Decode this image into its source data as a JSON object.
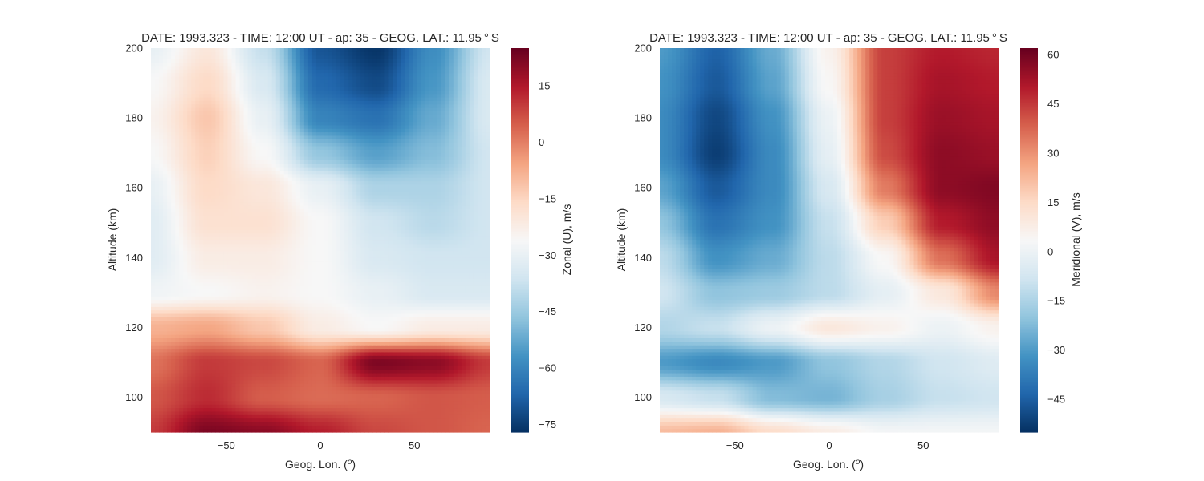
{
  "chart_data": [
    {
      "type": "heatmap",
      "title": "DATE: 1993.323 - TIME: 12:00 UT - ap:  35 - GEOG. LAT.:  11.95$^\\circ$S",
      "title_display": "DATE: 1993.323 - TIME: 12:00 UT - ap:  35 - GEOG. LAT.:  11.95 ° S",
      "xlabel": "Geog. Lon. (°)",
      "xlabel_prefix": "Geog. Lon. (",
      "xlabel_unit": "o",
      "xlabel_suffix": ")",
      "ylabel": "Altitude (km)",
      "colorbar_label": "Zonal (U), m/s",
      "xlim": [
        -90,
        90
      ],
      "ylim": [
        90,
        200
      ],
      "clim": [
        -77,
        25
      ],
      "colormap": "RdBu_r",
      "grid": false,
      "x_ticks": [
        {
          "value": -50,
          "label": "−50"
        },
        {
          "value": 0,
          "label": "0"
        },
        {
          "value": 50,
          "label": "50"
        }
      ],
      "y_ticks": [
        {
          "value": 100,
          "label": "100"
        },
        {
          "value": 120,
          "label": "120"
        },
        {
          "value": 140,
          "label": "140"
        },
        {
          "value": 160,
          "label": "160"
        },
        {
          "value": 180,
          "label": "180"
        },
        {
          "value": 200,
          "label": "200"
        }
      ],
      "colorbar_ticks": [
        {
          "value": -75,
          "label": "−75"
        },
        {
          "value": -60,
          "label": "−60"
        },
        {
          "value": -45,
          "label": "−45"
        },
        {
          "value": -30,
          "label": "−30"
        },
        {
          "value": -15,
          "label": "−15"
        },
        {
          "value": 0,
          "label": "0"
        },
        {
          "value": 15,
          "label": "15"
        }
      ],
      "grid_x": [
        -90,
        -60,
        -30,
        0,
        30,
        60,
        90
      ],
      "grid_y": [
        90,
        100,
        110,
        120,
        130,
        140,
        150,
        160,
        170,
        180,
        190,
        200
      ],
      "z": [
        [
          10,
          22,
          20,
          14,
          8,
          6,
          4
        ],
        [
          6,
          12,
          5,
          3,
          4,
          6,
          5
        ],
        [
          2,
          10,
          8,
          4,
          22,
          20,
          10
        ],
        [
          -8,
          -6,
          -12,
          -22,
          -26,
          -22,
          -22
        ],
        [
          -28,
          -26,
          -24,
          -26,
          -30,
          -34,
          -34
        ],
        [
          -32,
          -22,
          -22,
          -26,
          -34,
          -36,
          -36
        ],
        [
          -32,
          -18,
          -18,
          -26,
          -36,
          -40,
          -36
        ],
        [
          -30,
          -16,
          -20,
          -30,
          -42,
          -42,
          -36
        ],
        [
          -26,
          -14,
          -26,
          -46,
          -54,
          -48,
          -36
        ],
        [
          -24,
          -12,
          -30,
          -60,
          -64,
          -52,
          -34
        ],
        [
          -26,
          -16,
          -34,
          -66,
          -72,
          -56,
          -34
        ],
        [
          -30,
          -20,
          -38,
          -70,
          -76,
          -58,
          -36
        ]
      ]
    },
    {
      "type": "heatmap",
      "title": "DATE: 1993.323 - TIME: 12:00 UT - ap:  35 - GEOG. LAT.:  11.95$^\\circ$S",
      "title_display": "DATE: 1993.323 - TIME: 12:00 UT - ap:  35 - GEOG. LAT.:  11.95 ° S",
      "xlabel": "Geog. Lon. (°)",
      "xlabel_prefix": "Geog. Lon. (",
      "xlabel_unit": "o",
      "xlabel_suffix": ")",
      "ylabel": "Altitude (km)",
      "colorbar_label": "Meridional (V), m/s",
      "xlim": [
        -90,
        90
      ],
      "ylim": [
        90,
        200
      ],
      "clim": [
        -55,
        62
      ],
      "colormap": "RdBu_r",
      "grid": false,
      "x_ticks": [
        {
          "value": -50,
          "label": "−50"
        },
        {
          "value": 0,
          "label": "0"
        },
        {
          "value": 50,
          "label": "50"
        }
      ],
      "y_ticks": [
        {
          "value": 100,
          "label": "100"
        },
        {
          "value": 120,
          "label": "120"
        },
        {
          "value": 140,
          "label": "140"
        },
        {
          "value": 160,
          "label": "160"
        },
        {
          "value": 180,
          "label": "180"
        },
        {
          "value": 200,
          "label": "200"
        }
      ],
      "colorbar_ticks": [
        {
          "value": -45,
          "label": "−45"
        },
        {
          "value": -30,
          "label": "−30"
        },
        {
          "value": -15,
          "label": "−15"
        },
        {
          "value": 0,
          "label": "0"
        },
        {
          "value": 15,
          "label": "15"
        },
        {
          "value": 30,
          "label": "30"
        },
        {
          "value": 45,
          "label": "45"
        },
        {
          "value": 60,
          "label": "60"
        }
      ],
      "grid_x": [
        -90,
        -60,
        -30,
        0,
        30,
        60,
        90
      ],
      "grid_y": [
        90,
        100,
        110,
        120,
        130,
        140,
        150,
        160,
        170,
        180,
        190,
        200
      ],
      "z": [
        [
          22,
          24,
          14,
          8,
          2,
          2,
          2
        ],
        [
          -6,
          -10,
          -22,
          -24,
          -16,
          -10,
          -8
        ],
        [
          -30,
          -34,
          -30,
          -20,
          -14,
          -8,
          -4
        ],
        [
          -14,
          -10,
          0,
          10,
          6,
          0,
          6
        ],
        [
          -8,
          -20,
          -18,
          -12,
          -2,
          10,
          32
        ],
        [
          -12,
          -32,
          -26,
          -12,
          4,
          36,
          52
        ],
        [
          -20,
          -40,
          -32,
          -10,
          18,
          50,
          56
        ],
        [
          -28,
          -46,
          -34,
          -6,
          34,
          56,
          58
        ],
        [
          -34,
          -52,
          -34,
          -2,
          42,
          56,
          54
        ],
        [
          -34,
          -50,
          -32,
          0,
          44,
          54,
          52
        ],
        [
          -32,
          -46,
          -28,
          4,
          44,
          52,
          50
        ],
        [
          -30,
          -44,
          -26,
          6,
          44,
          50,
          48
        ]
      ]
    }
  ]
}
